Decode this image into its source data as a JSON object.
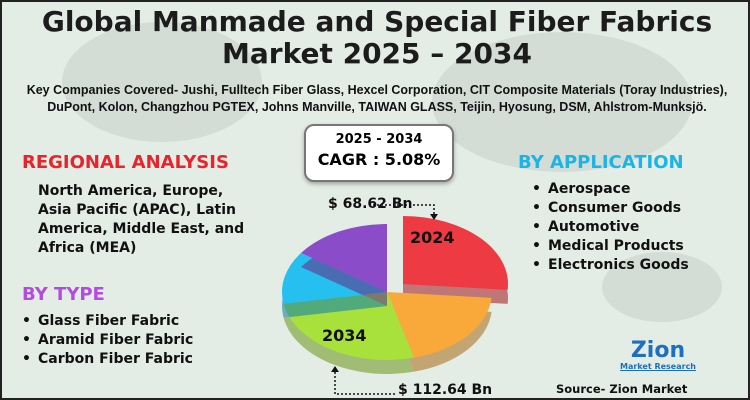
{
  "title": {
    "line1": "Global Manmade and Special Fiber Fabrics",
    "line2": "Market 2025 – 2034"
  },
  "companies": {
    "line1": "Key Companies Covered- Jushi, Fulltech Fiber Glass, Hexcel Corporation, CIT Composite Materials (Toray Industries),",
    "line2": "DuPont, Kolon, Changzhou PGTEX, Johns Manville, TAIWAN GLASS, Teijin, Hyosung, DSM, Ahlstrom-Munksjö."
  },
  "cagr": {
    "period": "2025 - 2034",
    "value": "CAGR : 5.08%"
  },
  "regional": {
    "heading": "REGIONAL ANALYSIS",
    "text": "North America, Europe, Asia Pacific (APAC), Latin America, Middle East, and Africa (MEA)",
    "color": "#e8232b"
  },
  "type": {
    "heading": "BY TYPE",
    "items": [
      "Glass Fiber Fabric",
      "Aramid Fiber Fabric",
      "Carbon Fiber Fabric"
    ],
    "color": "#b44be0"
  },
  "application": {
    "heading": "BY APPLICATION",
    "items": [
      "Aerospace",
      "Consumer Goods",
      "Automotive",
      "Medical Products",
      "Electronics Goods"
    ],
    "color": "#1cb4e8"
  },
  "pie": {
    "label_2024": "2024",
    "label_2034": "2034",
    "value_2024": "$ 68.62 Bn",
    "value_2034": "$ 112.64 Bn",
    "colors": [
      "#ee3a42",
      "#f8a93a",
      "#a8e03c",
      "#25c0f0",
      "#8a4cc8"
    ]
  },
  "logo": {
    "brand": "Zion",
    "sub": "Market Research"
  },
  "source": "Source- Zion Market Research"
}
